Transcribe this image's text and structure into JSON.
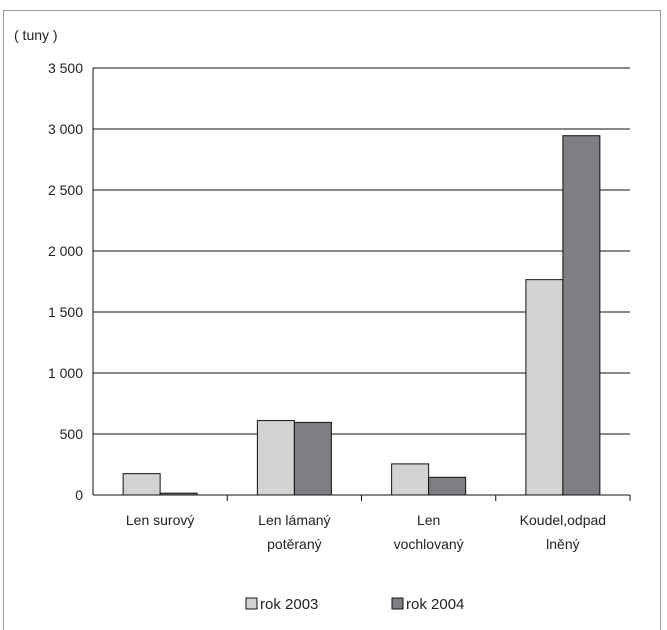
{
  "chart_data": {
    "type": "bar",
    "unit_label": "( tuny )",
    "categories": [
      [
        "Len surový"
      ],
      [
        "Len lámaný",
        "potěraný"
      ],
      [
        "Len",
        "vochlovaný"
      ],
      [
        "Koudel,odpad",
        "lněný"
      ]
    ],
    "series": [
      {
        "name": "rok 2003",
        "color": "#d3d3d3",
        "values": [
          175,
          610,
          255,
          1765
        ]
      },
      {
        "name": "rok 2004",
        "color": "#7f7f83",
        "values": [
          15,
          595,
          145,
          2945
        ]
      }
    ],
    "yticks": [
      "0",
      "500",
      "1 000",
      "1 500",
      "2 000",
      "2 500",
      "3 000",
      "3 500"
    ],
    "ylim": [
      0,
      3500
    ],
    "grid": true,
    "legend": "bottom"
  }
}
